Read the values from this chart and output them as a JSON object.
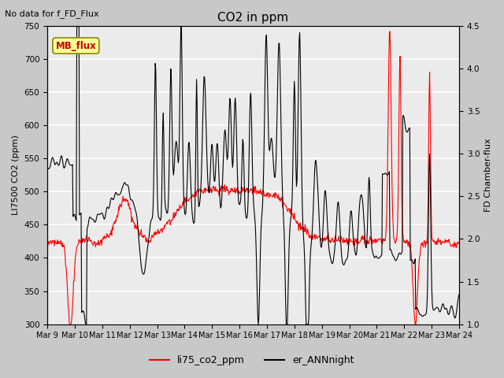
{
  "title": "CO2 in ppm",
  "top_left_text": "No data for f_FD_Flux",
  "left_ylabel": "LI7500 CO2 (ppm)",
  "right_ylabel": "FD Chamber-flux",
  "left_ylim": [
    300,
    750
  ],
  "right_ylim": [
    1.0,
    4.5
  ],
  "left_yticks": [
    300,
    350,
    400,
    450,
    500,
    550,
    600,
    650,
    700,
    750
  ],
  "right_yticks": [
    1.0,
    1.5,
    2.0,
    2.5,
    3.0,
    3.5,
    4.0,
    4.5
  ],
  "xtick_labels": [
    "Mar 9",
    "Mar 10",
    "Mar 11",
    "Mar 12",
    "Mar 13",
    "Mar 14",
    "Mar 15",
    "Mar 16",
    "Mar 17",
    "Mar 18",
    "Mar 19",
    "Mar 20",
    "Mar 21",
    "Mar 22",
    "Mar 23",
    "Mar 24"
  ],
  "legend_entries": [
    {
      "label": "li75_co2_ppm",
      "color": "#ff0000",
      "linewidth": 0.8
    },
    {
      "label": "er_ANNnight",
      "color": "#000000",
      "linewidth": 0.8
    }
  ],
  "mb_flux_box": {
    "text": "MB_flux",
    "text_color": "#cc0000",
    "box_color": "#ffff99",
    "edge_color": "#888800"
  },
  "figsize": [
    6.4,
    4.8
  ],
  "dpi": 100,
  "fig_bg_color": "#c8c8c8",
  "plot_bg_color": "#ebebeb",
  "grid_color": "#ffffff",
  "title_fontsize": 11,
  "label_fontsize": 8,
  "tick_fontsize": 7.5
}
